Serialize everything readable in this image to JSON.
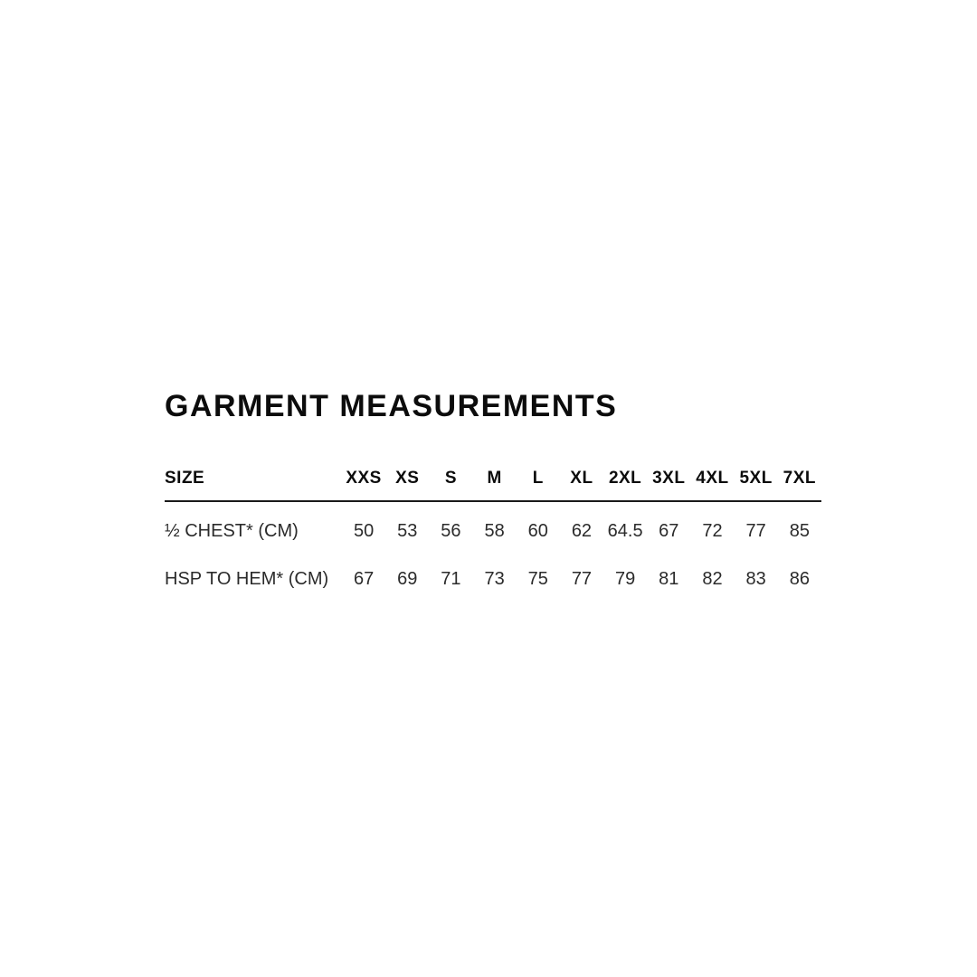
{
  "page": {
    "background": "#ffffff"
  },
  "styles": {
    "title_color": "#0c0c0c",
    "header_color": "#0c0c0c",
    "value_color": "#2b2b2b",
    "rule_color": "#1a1a1a"
  },
  "chart_data": {
    "type": "table",
    "title": "GARMENT MEASUREMENTS",
    "columns": [
      "SIZE",
      "XXS",
      "XS",
      "S",
      "M",
      "L",
      "XL",
      "2XL",
      "3XL",
      "4XL",
      "5XL",
      "7XL"
    ],
    "rows": [
      {
        "label": "½ CHEST* (CM)",
        "values": [
          "50",
          "53",
          "56",
          "58",
          "60",
          "62",
          "64.5",
          "67",
          "72",
          "77",
          "85"
        ]
      },
      {
        "label": "HSP TO HEM* (CM)",
        "values": [
          "67",
          "69",
          "71",
          "73",
          "75",
          "77",
          "79",
          "81",
          "82",
          "83",
          "86"
        ]
      }
    ],
    "layout": {
      "grid": "single horizontal rule under header row",
      "legend": "none",
      "alignment": "label column left-aligned, size columns centered"
    }
  }
}
